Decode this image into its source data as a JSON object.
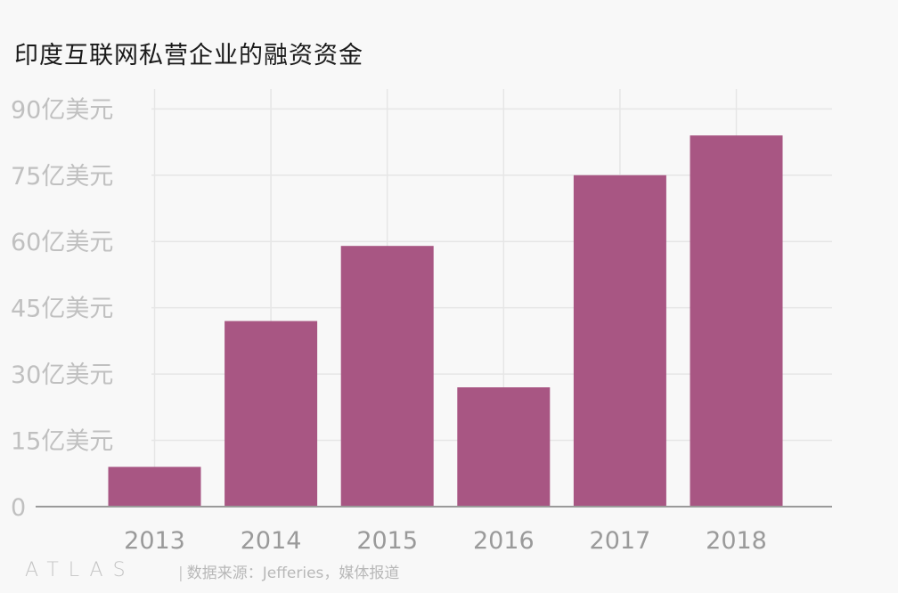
{
  "chart_data": {
    "type": "bar",
    "title": "印度互联网私营企业的融资资金",
    "categories": [
      "2013",
      "2014",
      "2015",
      "2016",
      "2017",
      "2018"
    ],
    "values": [
      9,
      42,
      59,
      27,
      75,
      84
    ],
    "y_ticks": [
      0,
      15,
      30,
      45,
      60,
      75,
      90
    ],
    "y_tick_labels": [
      "0",
      "15亿美元",
      "30亿美元",
      "45亿美元",
      "60亿美元",
      "75亿美元",
      "90亿美元"
    ],
    "ylim": [
      0,
      94.5
    ],
    "xlabel": "",
    "ylabel": "",
    "grid": true,
    "bar_color": "#a85683",
    "grid_color": "#e6e6e6",
    "axis_color": "#9a9a9a",
    "tick_label_color": "#c0c0c0",
    "x_tick_label_color": "#9a9a9a"
  },
  "footer": {
    "logo": "ATLAS",
    "source": "数据来源：Jefferies，媒体报道"
  }
}
